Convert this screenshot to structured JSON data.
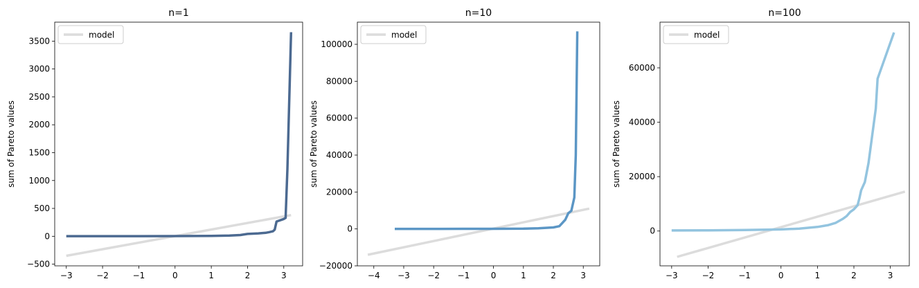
{
  "chart_data": [
    {
      "type": "line",
      "title": "n=1",
      "xlabel": "",
      "ylabel": "sum of Pareto values",
      "xlim": [
        -3.32,
        3.52
      ],
      "ylim": [
        -530,
        3840
      ],
      "xticks": [
        -3,
        -2,
        -1,
        0,
        1,
        2,
        3
      ],
      "yticks": [
        -500,
        0,
        500,
        1000,
        1500,
        2000,
        2500,
        3000,
        3500
      ],
      "legend": {
        "location": "upper-left",
        "entries": [
          "model"
        ]
      },
      "series": [
        {
          "name": "model",
          "color": "#dcdcdc",
          "x": [
            -3.0,
            3.2
          ],
          "y": [
            -350,
            380
          ]
        },
        {
          "color": "#4c6a91",
          "x": [
            -3.0,
            -2.0,
            -1.0,
            0.0,
            0.5,
            1.0,
            1.5,
            1.8,
            2.0,
            2.3,
            2.5,
            2.6,
            2.7,
            2.75,
            2.8,
            3.0,
            3.05,
            3.1,
            3.2
          ],
          "y": [
            3,
            3,
            3,
            4,
            5,
            8,
            14,
            22,
            42,
            52,
            62,
            75,
            90,
            120,
            265,
            310,
            330,
            1200,
            3660
          ]
        }
      ]
    },
    {
      "type": "line",
      "title": "n=10",
      "xlabel": "",
      "ylabel": "sum of Pareto values",
      "xlim": [
        -4.55,
        3.55
      ],
      "ylim": [
        -20000,
        112000
      ],
      "xticks": [
        -4,
        -3,
        -2,
        -1,
        0,
        1,
        2,
        3
      ],
      "yticks": [
        -20000,
        0,
        20000,
        40000,
        60000,
        80000,
        100000
      ],
      "legend": {
        "location": "upper-left",
        "entries": [
          "model"
        ]
      },
      "series": [
        {
          "name": "model",
          "color": "#dcdcdc",
          "x": [
            -4.2,
            3.2
          ],
          "y": [
            -14000,
            11000
          ]
        },
        {
          "color": "#5b96c5",
          "x": [
            -3.3,
            -2.0,
            -1.0,
            0.0,
            1.0,
            1.5,
            2.0,
            2.2,
            2.3,
            2.4,
            2.5,
            2.6,
            2.7,
            2.75,
            2.8
          ],
          "y": [
            30,
            40,
            50,
            80,
            150,
            350,
            800,
            1500,
            3200,
            5000,
            8500,
            9800,
            17000,
            40000,
            107000
          ]
        }
      ]
    },
    {
      "type": "line",
      "title": "n=100",
      "xlabel": "",
      "ylabel": "sum of Pareto values",
      "xlim": [
        -3.32,
        3.52
      ],
      "ylim": [
        -12800,
        76800
      ],
      "xticks": [
        -3,
        -2,
        -1,
        0,
        1,
        2,
        3
      ],
      "yticks": [
        0,
        20000,
        40000,
        60000
      ],
      "legend": {
        "location": "upper-left",
        "entries": [
          "model"
        ]
      },
      "series": [
        {
          "name": "model",
          "color": "#dcdcdc",
          "x": [
            -2.85,
            3.4
          ],
          "y": [
            -9500,
            14500
          ]
        },
        {
          "color": "#93c4df",
          "x": [
            -3.0,
            -2.0,
            -1.0,
            0.0,
            0.5,
            1.0,
            1.3,
            1.5,
            1.7,
            1.8,
            1.9,
            2.0,
            2.1,
            2.15,
            2.2,
            2.3,
            2.4,
            2.6,
            2.65,
            3.1
          ],
          "y": [
            200,
            250,
            350,
            600,
            900,
            1500,
            2200,
            3000,
            4500,
            5500,
            7000,
            8000,
            9500,
            12000,
            15000,
            18000,
            25000,
            45000,
            56000,
            73000
          ]
        }
      ]
    }
  ]
}
